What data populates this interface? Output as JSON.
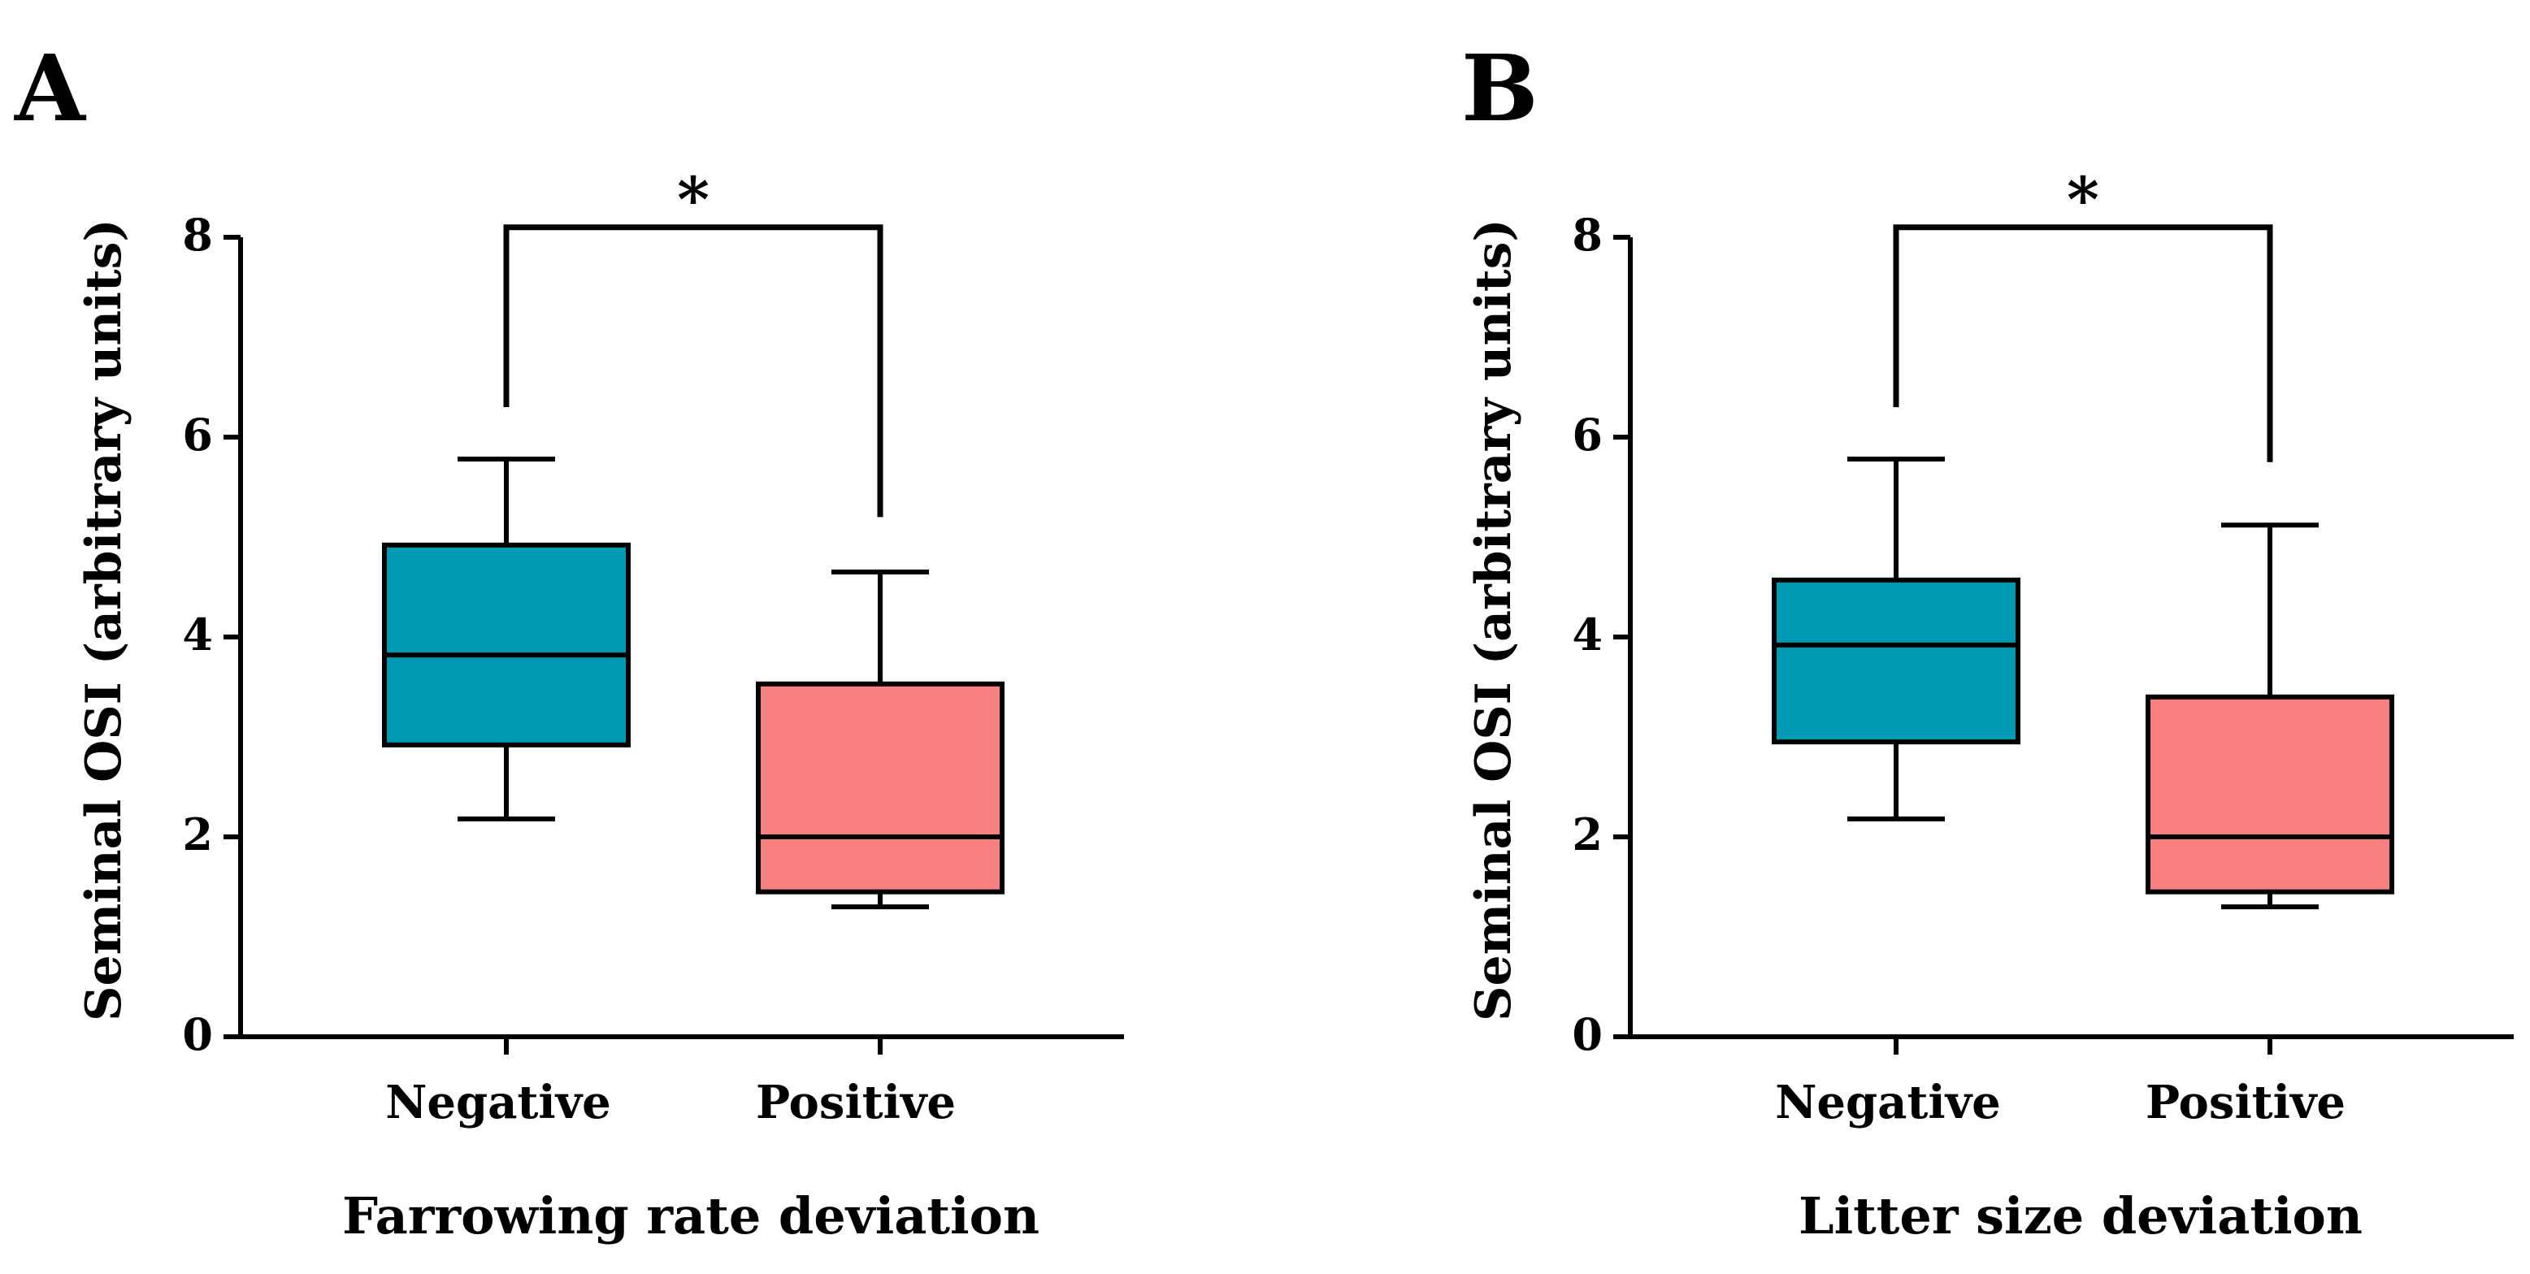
{
  "figure": {
    "colors": {
      "negative": "#0099B4",
      "positive": "#F88080",
      "ink": "#000000"
    }
  },
  "chart_data": [
    {
      "panel": "A",
      "type": "box",
      "title": "",
      "xlabel": "Farrowing rate deviation",
      "ylabel": "Seminal OSI (arbitrary units)",
      "ylim": [
        0,
        8
      ],
      "yticks": [
        "0",
        "2",
        "4",
        "6",
        "8"
      ],
      "categories": [
        "Negative",
        "Positive"
      ],
      "boxes": [
        {
          "category": "Negative",
          "min": 2.18,
          "q1": 2.92,
          "median": 3.82,
          "q3": 4.92,
          "max": 5.78,
          "color": "#0099B4"
        },
        {
          "category": "Positive",
          "min": 1.3,
          "q1": 1.45,
          "median": 2.0,
          "q3": 3.53,
          "max": 4.65,
          "color": "#F88080"
        }
      ],
      "significance": {
        "between": [
          "Negative",
          "Positive"
        ],
        "label": "*",
        "bracket_y": 8.1,
        "left_end": 6.3,
        "right_end": 5.2
      }
    },
    {
      "panel": "B",
      "type": "box",
      "title": "",
      "xlabel": "Litter size deviation",
      "ylabel": "Seminal OSI (arbitrary units)",
      "ylim": [
        0,
        8
      ],
      "yticks": [
        "0",
        "2",
        "4",
        "6",
        "8"
      ],
      "categories": [
        "Negative",
        "Positive"
      ],
      "boxes": [
        {
          "category": "Negative",
          "min": 2.18,
          "q1": 2.95,
          "median": 3.92,
          "q3": 4.57,
          "max": 5.78,
          "color": "#0099B4"
        },
        {
          "category": "Positive",
          "min": 1.3,
          "q1": 1.45,
          "median": 2.0,
          "q3": 3.4,
          "max": 5.12,
          "color": "#F88080"
        }
      ],
      "significance": {
        "between": [
          "Negative",
          "Positive"
        ],
        "label": "*",
        "bracket_y": 8.1,
        "left_end": 6.3,
        "right_end": 5.75
      }
    }
  ]
}
